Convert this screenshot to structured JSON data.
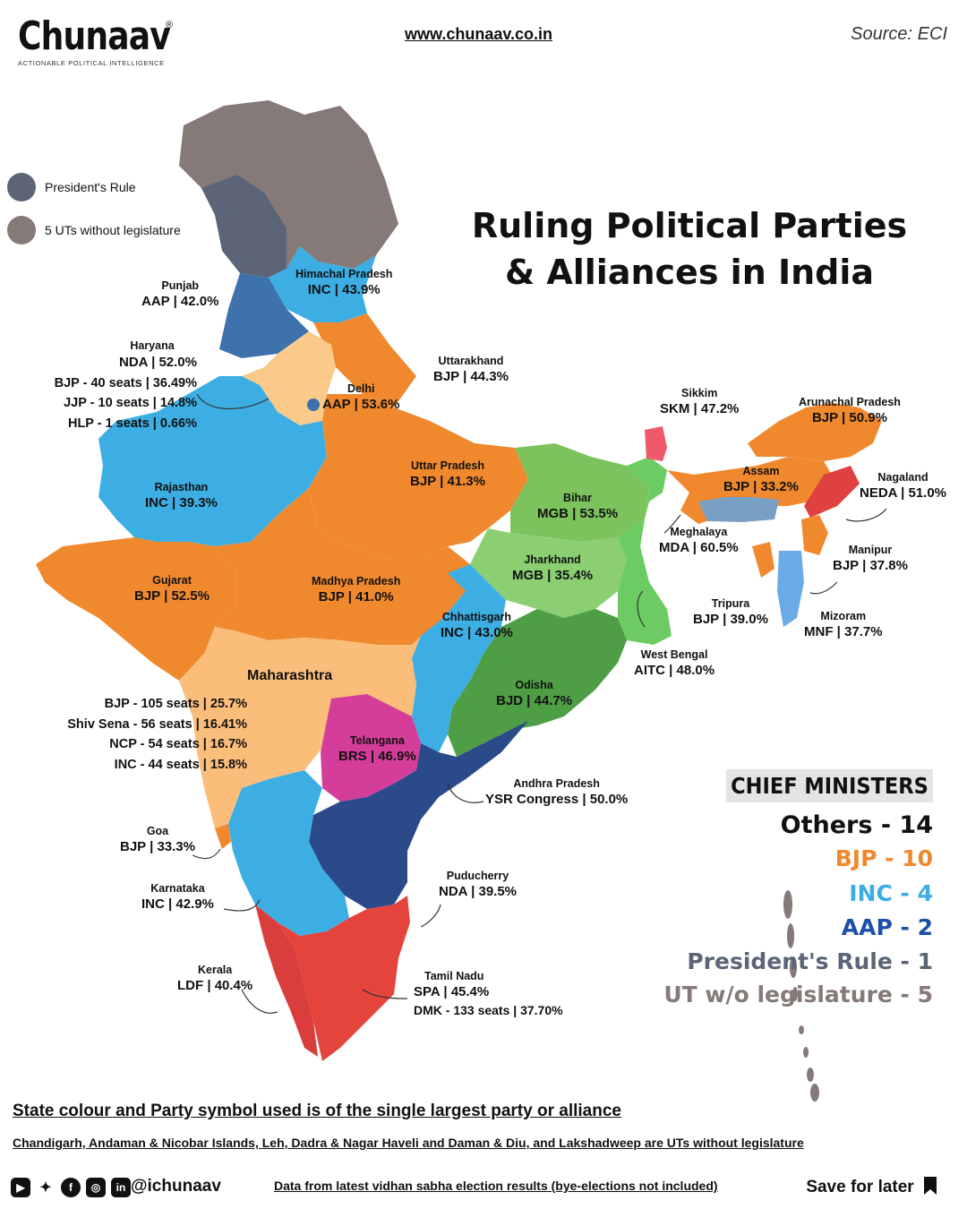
{
  "brand": {
    "name": "Chunaav",
    "registered": "®",
    "tagline": "ACTIONABLE POLITICAL INTELLIGENCE"
  },
  "header": {
    "website": "www.chunaav.co.in",
    "source": "Source: ECI"
  },
  "legend": [
    {
      "label": "President's Rule",
      "color": "#5b6577"
    },
    {
      "label": "5 UTs without legislature",
      "color": "#857a78"
    }
  ],
  "title": {
    "line1": "Ruling Political Parties",
    "line2": "& Alliances in India"
  },
  "colors": {
    "BJP": "#f0892e",
    "INC": "#3daee3",
    "AAP": "#3e72ad",
    "President": "#5b6577",
    "UT": "#857a78",
    "Maharashtra": "#fbbd7a",
    "Haryana": "#fbc98a",
    "MGB": "#7dc35d",
    "AITC": "#6ccb63",
    "BJD": "#4e9e45",
    "YSR": "#2b4a8a",
    "BRS": "#d43e9a",
    "DMK": "#e4443b",
    "LDF": "#d93e3c",
    "SKM": "#ee5a6a",
    "NEDA": "#df4040",
    "MDA": "#7a9fc4",
    "MNF": "#6aaae6"
  },
  "states": {
    "himachal": {
      "name": "Himachal Pradesh",
      "value": "INC | 43.9%"
    },
    "punjab": {
      "name": "Punjab",
      "value": "AAP | 42.0%"
    },
    "uttarakhand": {
      "name": "Uttarakhand",
      "value": "BJP | 44.3%"
    },
    "delhi": {
      "name": "Delhi",
      "value": "AAP | 53.6%"
    },
    "rajasthan": {
      "name": "Rajasthan",
      "value": "INC | 39.3%"
    },
    "up": {
      "name": "Uttar Pradesh",
      "value": "BJP | 41.3%"
    },
    "sikkim": {
      "name": "Sikkim",
      "value": "SKM | 47.2%"
    },
    "arunachal": {
      "name": "Arunachal Pradesh",
      "value": "BJP | 50.9%"
    },
    "assam": {
      "name": "Assam",
      "value": "BJP | 33.2%"
    },
    "nagaland": {
      "name": "Nagaland",
      "value": "NEDA | 51.0%"
    },
    "bihar": {
      "name": "Bihar",
      "value": "MGB | 53.5%"
    },
    "meghalaya": {
      "name": "Meghalaya",
      "value": "MDA | 60.5%"
    },
    "jharkhand": {
      "name": "Jharkhand",
      "value": "MGB | 35.4%"
    },
    "manipur": {
      "name": "Manipur",
      "value": "BJP | 37.8%"
    },
    "gujarat": {
      "name": "Gujarat",
      "value": "BJP | 52.5%"
    },
    "mp": {
      "name": "Madhya Pradesh",
      "value": "BJP | 41.0%"
    },
    "tripura": {
      "name": "Tripura",
      "value": "BJP | 39.0%"
    },
    "mizoram": {
      "name": "Mizoram",
      "value": "MNF | 37.7%"
    },
    "chhattisgarh": {
      "name": "Chhattisgarh",
      "value": "INC | 43.0%"
    },
    "wb": {
      "name": "West Bengal",
      "value": "AITC | 48.0%"
    },
    "odisha": {
      "name": "Odisha",
      "value": "BJD | 44.7%"
    },
    "telangana": {
      "name": "Telangana",
      "value": "BRS | 46.9%"
    },
    "ap": {
      "name": "Andhra Pradesh",
      "value": "YSR Congress | 50.0%"
    },
    "goa": {
      "name": "Goa",
      "value": "BJP | 33.3%"
    },
    "puducherry": {
      "name": "Puducherry",
      "value": "NDA | 39.5%"
    },
    "karnataka": {
      "name": "Karnataka",
      "value": "INC | 42.9%"
    },
    "kerala": {
      "name": "Kerala",
      "value": "LDF | 40.4%"
    },
    "tamilnadu": {
      "name": "Tamil Nadu",
      "value": "SPA | 45.4%",
      "extra": "DMK - 133 seats | 37.70%"
    }
  },
  "haryana": {
    "name": "Haryana",
    "lines": [
      "NDA | 52.0%",
      "BJP - 40 seats | 36.49%",
      "JJP - 10 seats | 14.8%",
      "HLP - 1 seats | 0.66%"
    ]
  },
  "maharashtra": {
    "name": "Maharashtra",
    "lines": [
      "BJP - 105 seats | 25.7%",
      "Shiv Sena - 56 seats | 16.41%",
      "NCP - 54 seats | 16.7%",
      "INC - 44 seats | 15.8%"
    ]
  },
  "chief_ministers": {
    "heading": "CHIEF MINISTERS",
    "rows": [
      {
        "label": "Others - 14",
        "color": "#111111"
      },
      {
        "label": "BJP -  10",
        "color": "#f0892e"
      },
      {
        "label": "INC - 4",
        "color": "#3daee3"
      },
      {
        "label": "AAP - 2",
        "color": "#1c4fa8"
      },
      {
        "label": "President's Rule -  1",
        "color": "#5b6577"
      },
      {
        "label": "UT w/o legislature -  5",
        "color": "#857a78"
      }
    ]
  },
  "footer": {
    "note1": "State colour and Party symbol used is of the single largest party or alliance",
    "note2": "Chandigarh, Andaman & Nicobar Islands, Leh, Dadra & Nagar Haveli and Daman & Diu, and Lakshadweep are UTs without legislature",
    "handle": "@ichunaav",
    "data_note": "Data from latest vidhan sabha election results (bye-elections not included)",
    "save": "Save for later"
  },
  "social_icons": [
    "youtube-icon",
    "twitter-icon",
    "facebook-icon",
    "instagram-icon",
    "linkedin-icon"
  ]
}
